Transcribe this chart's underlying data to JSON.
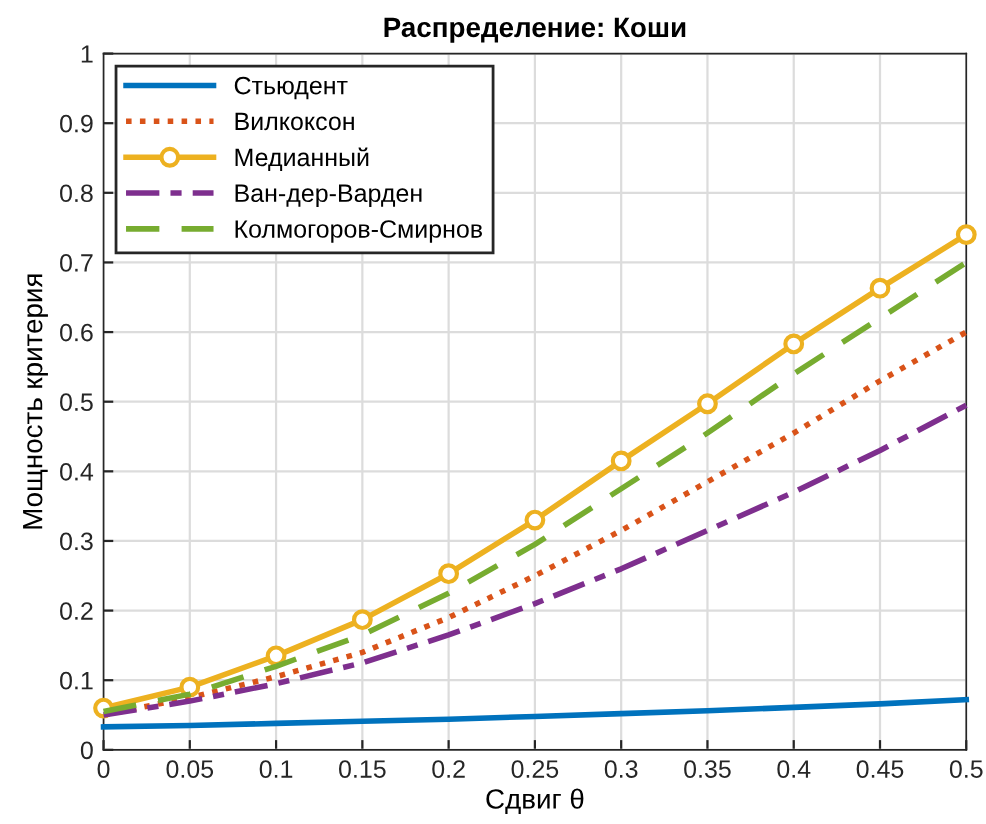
{
  "chart_data": {
    "type": "line",
    "title": "Распределение: Коши",
    "xlabel": "Сдвиг θ",
    "ylabel": "Мощность критерия",
    "x": [
      0,
      0.05,
      0.1,
      0.15,
      0.2,
      0.25,
      0.3,
      0.35,
      0.4,
      0.45,
      0.5
    ],
    "series": [
      {
        "name": "Стьюдент",
        "color": "#0072bd",
        "line_style": "solid",
        "marker": "none",
        "values": [
          0.033,
          0.035,
          0.038,
          0.041,
          0.044,
          0.048,
          0.052,
          0.056,
          0.061,
          0.066,
          0.072
        ]
      },
      {
        "name": "Вилкоксон",
        "color": "#d95319",
        "line_style": "dotted",
        "marker": "none",
        "values": [
          0.05,
          0.075,
          0.105,
          0.14,
          0.19,
          0.25,
          0.315,
          0.385,
          0.455,
          0.53,
          0.6
        ]
      },
      {
        "name": "Медианный",
        "color": "#edb120",
        "line_style": "solid",
        "marker": "circle",
        "values": [
          0.06,
          0.09,
          0.135,
          0.187,
          0.253,
          0.33,
          0.415,
          0.497,
          0.583,
          0.663,
          0.74
        ]
      },
      {
        "name": "Ван-дер-Варден",
        "color": "#7e2f8e",
        "line_style": "dashdot",
        "marker": "none",
        "values": [
          0.05,
          0.07,
          0.095,
          0.125,
          0.165,
          0.21,
          0.26,
          0.315,
          0.37,
          0.43,
          0.495
        ]
      },
      {
        "name": "Колмогоров-Смирнов",
        "color": "#77ac30",
        "line_style": "dashed",
        "marker": "none",
        "values": [
          0.055,
          0.08,
          0.12,
          0.165,
          0.225,
          0.295,
          0.375,
          0.455,
          0.54,
          0.62,
          0.7
        ]
      }
    ],
    "xlim": [
      0,
      0.5
    ],
    "xticks": [
      0,
      0.05,
      0.1,
      0.15,
      0.2,
      0.25,
      0.3,
      0.35,
      0.4,
      0.45,
      0.5
    ],
    "ylim": [
      0,
      1
    ],
    "yticks": [
      0,
      0.1,
      0.2,
      0.3,
      0.4,
      0.5,
      0.6,
      0.7,
      0.8,
      0.9,
      1
    ],
    "grid": true,
    "legend": "top left"
  }
}
